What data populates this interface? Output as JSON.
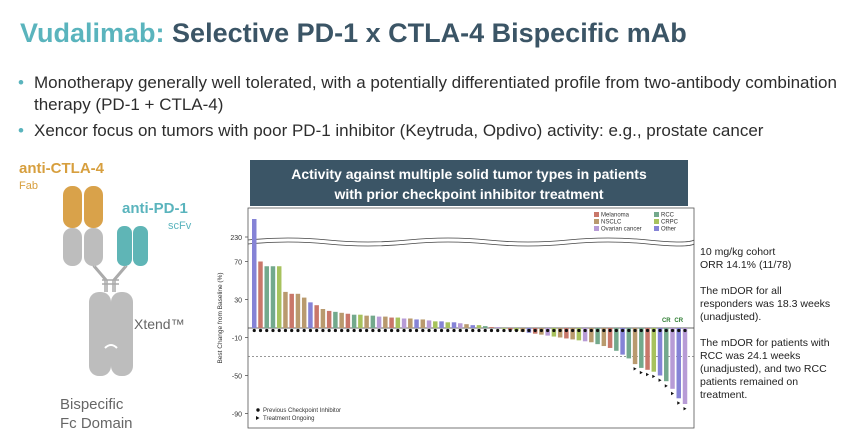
{
  "header": {
    "title_prefix": "Vudalimab:",
    "title_rest": "Selective PD-1 x CTLA-4 Bispecific mAb"
  },
  "bullets": [
    "Monotherapy generally well tolerated, with a potentially differentiated profile from two-antibody combination therapy (PD-1 + CTLA-4)",
    "Xencor focus on tumors with poor PD-1 inhibitor (Keytruda, Opdivo) activity: e.g., prostate cancer"
  ],
  "molecule": {
    "ctla_label": "anti-CTLA-4",
    "fab_label": "Fab",
    "pd1_label": "anti-PD-1",
    "scfv_label": "scFv",
    "xtend_label": "Xtend™",
    "bispecific_label": "Bispecific",
    "fc_label": "Fc Domain",
    "colors": {
      "ctla": "#d9a24a",
      "pd1": "#5fb5b6",
      "body": "#bdbdbd"
    }
  },
  "banner": {
    "line1": "Activity against multiple solid tumor types in patients",
    "line2": "with prior checkpoint inhibitor treatment"
  },
  "annotations": {
    "block1": [
      "10 mg/kg cohort",
      "ORR 14.1% (11/78)"
    ],
    "block2": [
      "The mDOR for all",
      "responders was 18.3 weeks",
      "(unadjusted)."
    ],
    "block3": [
      "The mDOR for patients with",
      "RCC was 24.1 weeks",
      "(unadjusted), and two RCC",
      "patients remained on",
      "treatment."
    ]
  },
  "chart_data": {
    "type": "bar",
    "ylabel": "Best Change from Baseline (%)",
    "y_ticks": [
      "230",
      "70",
      "30",
      "-10",
      "-50",
      "-90"
    ],
    "y_break": [
      70,
      230
    ],
    "dashed_line": -30,
    "legend": [
      {
        "name": "Melanoma",
        "color": "#c9776a"
      },
      {
        "name": "NSCLC",
        "color": "#b99a6e"
      },
      {
        "name": "Ovarian cancer",
        "color": "#b79bd6"
      },
      {
        "name": "RCC",
        "color": "#73a98c"
      },
      {
        "name": "CRPC",
        "color": "#a7c25d"
      },
      {
        "name": "Other",
        "color": "#8583d6"
      }
    ],
    "footnotes": [
      "Previous Checkpoint Inhibitor",
      "Treatment Ongoing"
    ],
    "cr_label": "CR",
    "bars": [
      {
        "v": 260,
        "t": "Other"
      },
      {
        "v": 70,
        "t": "Melanoma"
      },
      {
        "v": 65,
        "t": "RCC"
      },
      {
        "v": 65,
        "t": "RCC"
      },
      {
        "v": 65,
        "t": "CRPC"
      },
      {
        "v": 38,
        "t": "NSCLC"
      },
      {
        "v": 36,
        "t": "Melanoma"
      },
      {
        "v": 36,
        "t": "NSCLC"
      },
      {
        "v": 32,
        "t": "NSCLC"
      },
      {
        "v": 27,
        "t": "Other"
      },
      {
        "v": 24,
        "t": "Melanoma"
      },
      {
        "v": 20,
        "t": "NSCLC"
      },
      {
        "v": 18,
        "t": "Melanoma"
      },
      {
        "v": 17,
        "t": "RCC"
      },
      {
        "v": 16,
        "t": "NSCLC"
      },
      {
        "v": 15,
        "t": "Melanoma"
      },
      {
        "v": 14,
        "t": "RCC"
      },
      {
        "v": 14,
        "t": "CRPC"
      },
      {
        "v": 13,
        "t": "NSCLC"
      },
      {
        "v": 13,
        "t": "RCC"
      },
      {
        "v": 12,
        "t": "Ovarian cancer"
      },
      {
        "v": 12,
        "t": "NSCLC"
      },
      {
        "v": 11,
        "t": "Melanoma"
      },
      {
        "v": 11,
        "t": "CRPC"
      },
      {
        "v": 10,
        "t": "Ovarian cancer"
      },
      {
        "v": 10,
        "t": "NSCLC"
      },
      {
        "v": 9,
        "t": "Other"
      },
      {
        "v": 9,
        "t": "NSCLC"
      },
      {
        "v": 8,
        "t": "Ovarian cancer"
      },
      {
        "v": 7,
        "t": "CRPC"
      },
      {
        "v": 7,
        "t": "Other"
      },
      {
        "v": 6,
        "t": "CRPC"
      },
      {
        "v": 6,
        "t": "Other"
      },
      {
        "v": 5,
        "t": "Ovarian cancer"
      },
      {
        "v": 4,
        "t": "NSCLC"
      },
      {
        "v": 3,
        "t": "Other"
      },
      {
        "v": 3,
        "t": "CRPC"
      },
      {
        "v": 2,
        "t": "RCC"
      },
      {
        "v": 1,
        "t": "Melanoma"
      },
      {
        "v": 1,
        "t": "Ovarian cancer"
      },
      {
        "v": 0,
        "t": "CRPC"
      },
      {
        "v": -2,
        "t": "Melanoma"
      },
      {
        "v": -3,
        "t": "CRPC"
      },
      {
        "v": -4,
        "t": "NSCLC"
      },
      {
        "v": -5,
        "t": "Other"
      },
      {
        "v": -6,
        "t": "Melanoma"
      },
      {
        "v": -7,
        "t": "NSCLC"
      },
      {
        "v": -8,
        "t": "Ovarian cancer"
      },
      {
        "v": -9,
        "t": "CRPC"
      },
      {
        "v": -10,
        "t": "NSCLC"
      },
      {
        "v": -11,
        "t": "Melanoma"
      },
      {
        "v": -12,
        "t": "NSCLC"
      },
      {
        "v": -13,
        "t": "CRPC"
      },
      {
        "v": -14,
        "t": "Ovarian cancer"
      },
      {
        "v": -15,
        "t": "NSCLC"
      },
      {
        "v": -17,
        "t": "RCC"
      },
      {
        "v": -19,
        "t": "NSCLC"
      },
      {
        "v": -21,
        "t": "Melanoma"
      },
      {
        "v": -24,
        "t": "RCC"
      },
      {
        "v": -28,
        "t": "Other"
      },
      {
        "v": -32,
        "t": "RCC"
      },
      {
        "v": -38,
        "t": "NSCLC"
      },
      {
        "v": -42,
        "t": "RCC"
      },
      {
        "v": -44,
        "t": "Melanoma"
      },
      {
        "v": -46,
        "t": "CRPC"
      },
      {
        "v": -50,
        "t": "Other"
      },
      {
        "v": -56,
        "t": "RCC"
      },
      {
        "v": -64,
        "t": "Ovarian cancer"
      },
      {
        "v": -74,
        "t": "Other"
      },
      {
        "v": -80,
        "t": "Ovarian cancer"
      }
    ]
  }
}
